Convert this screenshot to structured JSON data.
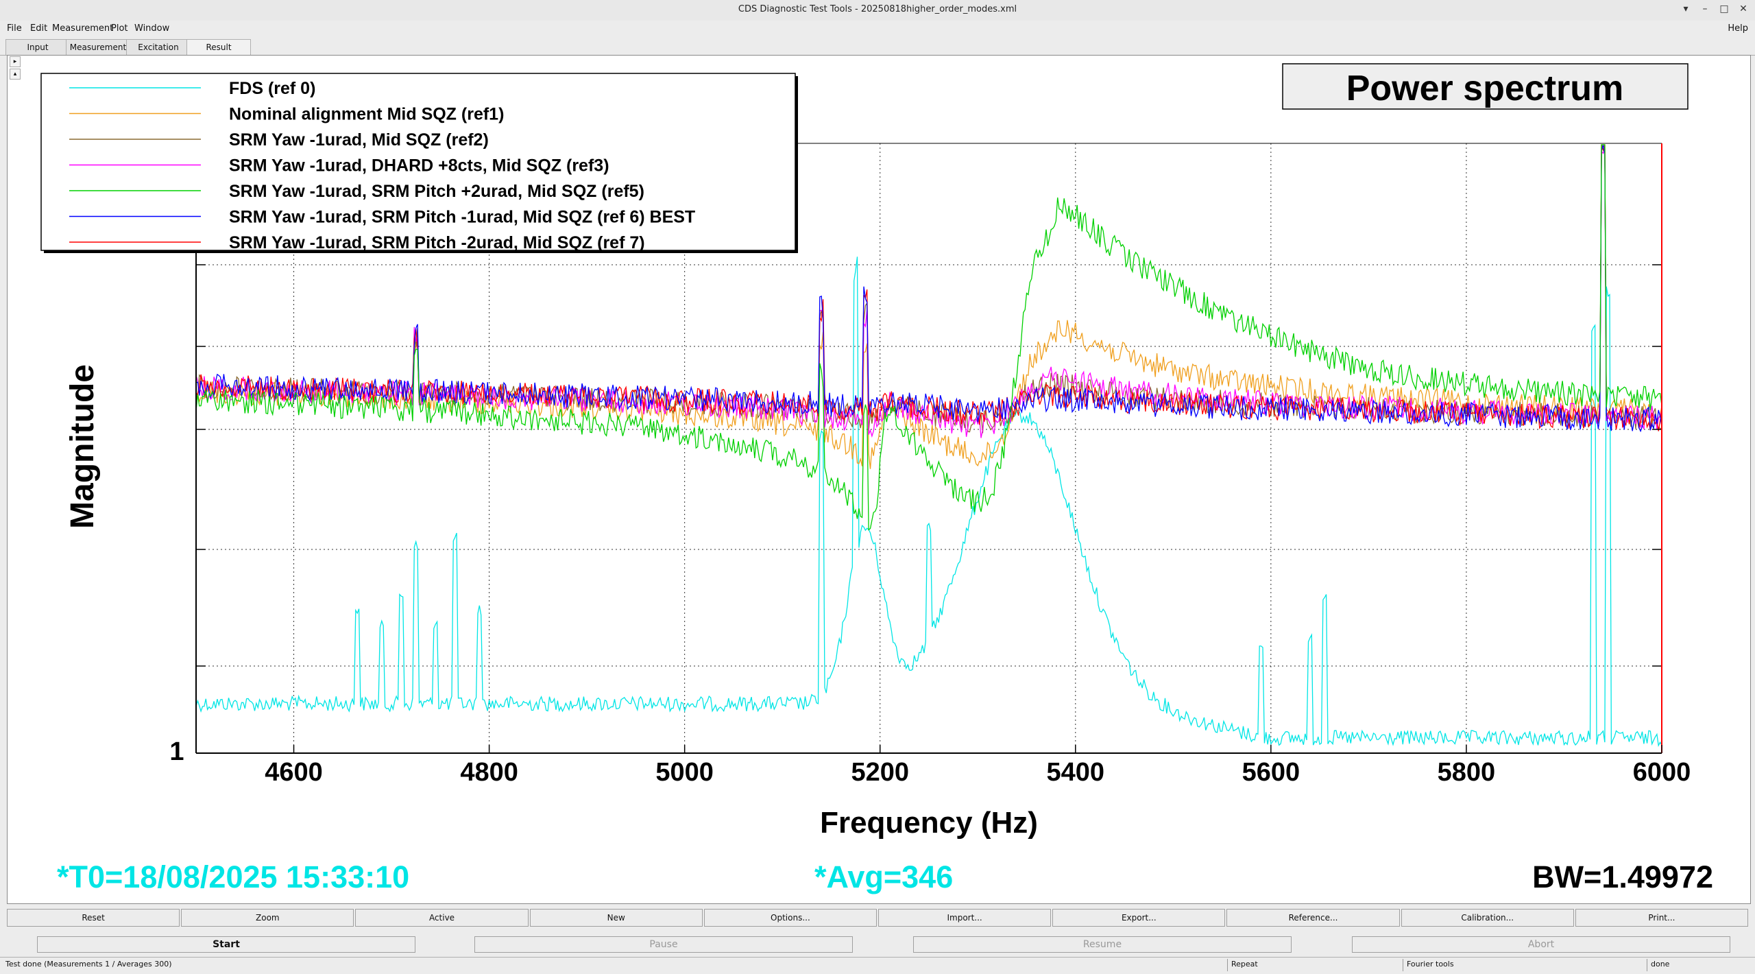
{
  "window": {
    "title": "CDS Diagnostic Test Tools - 20250818higher_order_modes.xml"
  },
  "menu": {
    "file": "File",
    "edit": "Edit",
    "measurement": "Measurement",
    "plot": "Plot",
    "window": "Window",
    "help": "Help"
  },
  "tabs": [
    "Input",
    "Measurement",
    "Excitation",
    "Result"
  ],
  "plot_title": "Power spectrum",
  "t0_text": "*T0=18/08/2025 15:33:10",
  "avg_text": "*Avg=346",
  "bw_text": "BW=1.49972",
  "bottom_buttons": [
    "Reset",
    "Zoom",
    "Active",
    "New",
    "Options...",
    "Import...",
    "Export...",
    "Reference...",
    "Calibration...",
    "Print..."
  ],
  "controls": {
    "start": "Start",
    "pause": "Pause",
    "resume": "Resume",
    "abort": "Abort"
  },
  "status": {
    "test": "Test done (Measurements 1 / Averages 300)",
    "repeat": "Repeat",
    "tools": "Fourier tools",
    "state": "done"
  },
  "colors": {
    "cyan": "#00e5e5",
    "ref1": "#f0a020",
    "ref2": "#8a6a30",
    "ref3": "#ff00ff",
    "ref5": "#00d000",
    "ref6": "#0000ff",
    "ref7": "#ff0000",
    "frame_right": "#ff0000"
  },
  "chart_data": {
    "type": "line",
    "title": "Power spectrum",
    "xlabel": "Frequency (Hz)",
    "ylabel": "Magnitude",
    "xlim": [
      4500,
      6000
    ],
    "x_ticks": [
      4600,
      4800,
      5000,
      5200,
      5400,
      5600,
      5800,
      6000
    ],
    "y_tick_labels": [
      "1"
    ],
    "grid": true,
    "legend_position": "top-left",
    "series": [
      {
        "name": "FDS (ref 0)",
        "color": "#00e5e5"
      },
      {
        "name": "Nominal alignment Mid SQZ (ref1)",
        "color": "#f0a020"
      },
      {
        "name": "SRM Yaw -1urad, Mid SQZ (ref2)",
        "color": "#8a6a30"
      },
      {
        "name": "SRM Yaw -1urad, DHARD +8cts,  Mid SQZ (ref3)",
        "color": "#ff00ff"
      },
      {
        "name": "SRM Yaw -1urad, SRM Pitch +2urad, Mid SQZ (ref5)",
        "color": "#00d000"
      },
      {
        "name": "SRM Yaw -1urad, SRM Pitch -1urad, Mid SQZ (ref 6) BEST",
        "color": "#0000ff"
      },
      {
        "name": "SRM Yaw -1urad, SRM Pitch -2urad, Mid SQZ (ref 7)",
        "color": "#ff0000"
      }
    ]
  }
}
